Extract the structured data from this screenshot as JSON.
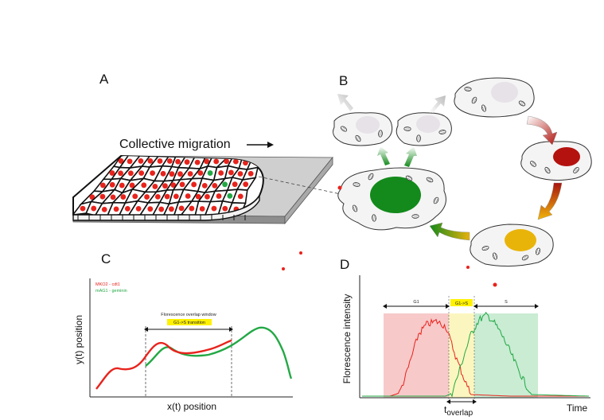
{
  "panels": {
    "a": {
      "label": "A",
      "title": "Collective migration"
    },
    "b": {
      "label": "B",
      "nucleus_colors": {
        "phase1": "#e6e2e8",
        "phase2": "#b4120f",
        "phase3": "#e9b40a",
        "phase4": "#138a1b"
      }
    },
    "c": {
      "label": "C",
      "legend_red": "MKO2 - cdt1",
      "legend_green": "mAG1 - geminin",
      "window_label": "Florescence overlap window",
      "transition_label": "G1->S transition",
      "xlabel": "x(t) position",
      "ylabel": "y(t) position"
    },
    "d": {
      "label": "D",
      "phase_g1": "G1",
      "phase_g1s": "G1->S",
      "phase_s": "S",
      "ylabel": "Florescence intensity",
      "xlabel": "Time",
      "t_main": "t",
      "t_sub": "overlap"
    }
  },
  "colors": {
    "red": "#e8231c",
    "green": "#23a845",
    "highlight": "#fff200",
    "g1_band": "#f7c9c9",
    "overlap_band": "#fbf6bf",
    "s_band": "#c9ecd3"
  }
}
